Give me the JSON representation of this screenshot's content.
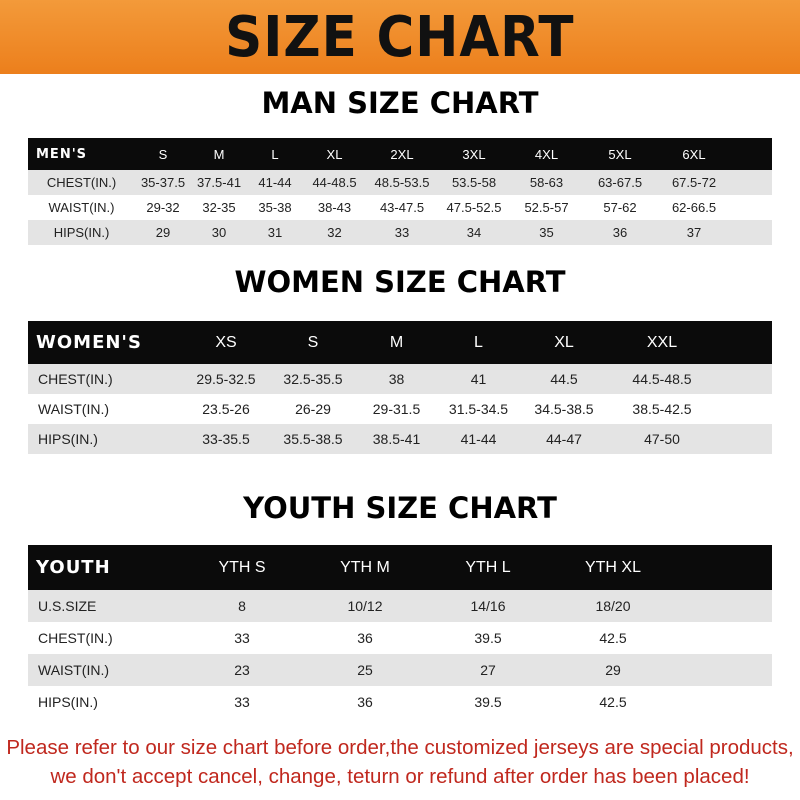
{
  "banner": {
    "title": "SIZE CHART",
    "color": "#ef8a27"
  },
  "men": {
    "title": "MAN SIZE CHART",
    "header": [
      "MEN'S",
      "S",
      "M",
      "L",
      "XL",
      "2XL",
      "3XL",
      "4XL",
      "5XL",
      "6XL"
    ],
    "rows": [
      [
        "CHEST(IN.)",
        "35-37.5",
        "37.5-41",
        "41-44",
        "44-48.5",
        "48.5-53.5",
        "53.5-58",
        "58-63",
        "63-67.5",
        "67.5-72"
      ],
      [
        "WAIST(IN.)",
        "29-32",
        "32-35",
        "35-38",
        "38-43",
        "43-47.5",
        "47.5-52.5",
        "52.5-57",
        "57-62",
        "62-66.5"
      ],
      [
        "HIPS(IN.)",
        "29",
        "30",
        "31",
        "32",
        "33",
        "34",
        "35",
        "36",
        "37"
      ]
    ]
  },
  "women": {
    "title": "WOMEN SIZE CHART",
    "header": [
      "WOMEN'S",
      "XS",
      "S",
      "M",
      "L",
      "XL",
      "XXL"
    ],
    "rows": [
      [
        "CHEST(IN.)",
        "29.5-32.5",
        "32.5-35.5",
        "38",
        "41",
        "44.5",
        "44.5-48.5"
      ],
      [
        "WAIST(IN.)",
        "23.5-26",
        "26-29",
        "29-31.5",
        "31.5-34.5",
        "34.5-38.5",
        "38.5-42.5"
      ],
      [
        "HIPS(IN.)",
        "33-35.5",
        "35.5-38.5",
        "38.5-41",
        "41-44",
        "44-47",
        "47-50"
      ]
    ]
  },
  "youth": {
    "title": "YOUTH SIZE CHART",
    "header": [
      "YOUTH",
      "YTH S",
      "YTH M",
      "YTH L",
      "YTH XL"
    ],
    "rows": [
      [
        "U.S.SIZE",
        "8",
        "10/12",
        "14/16",
        "18/20"
      ],
      [
        "CHEST(IN.)",
        "33",
        "36",
        "39.5",
        "42.5"
      ],
      [
        "WAIST(IN.)",
        "23",
        "25",
        "27",
        "29"
      ],
      [
        "HIPS(IN.)",
        "33",
        "36",
        "39.5",
        "42.5"
      ]
    ]
  },
  "notice": {
    "line1": "Please refer to our size chart before order,the customized jerseys are special products,",
    "line2": "we don't accept cancel, change, teturn or refund after order has been placed!",
    "color": "#c0281e"
  }
}
